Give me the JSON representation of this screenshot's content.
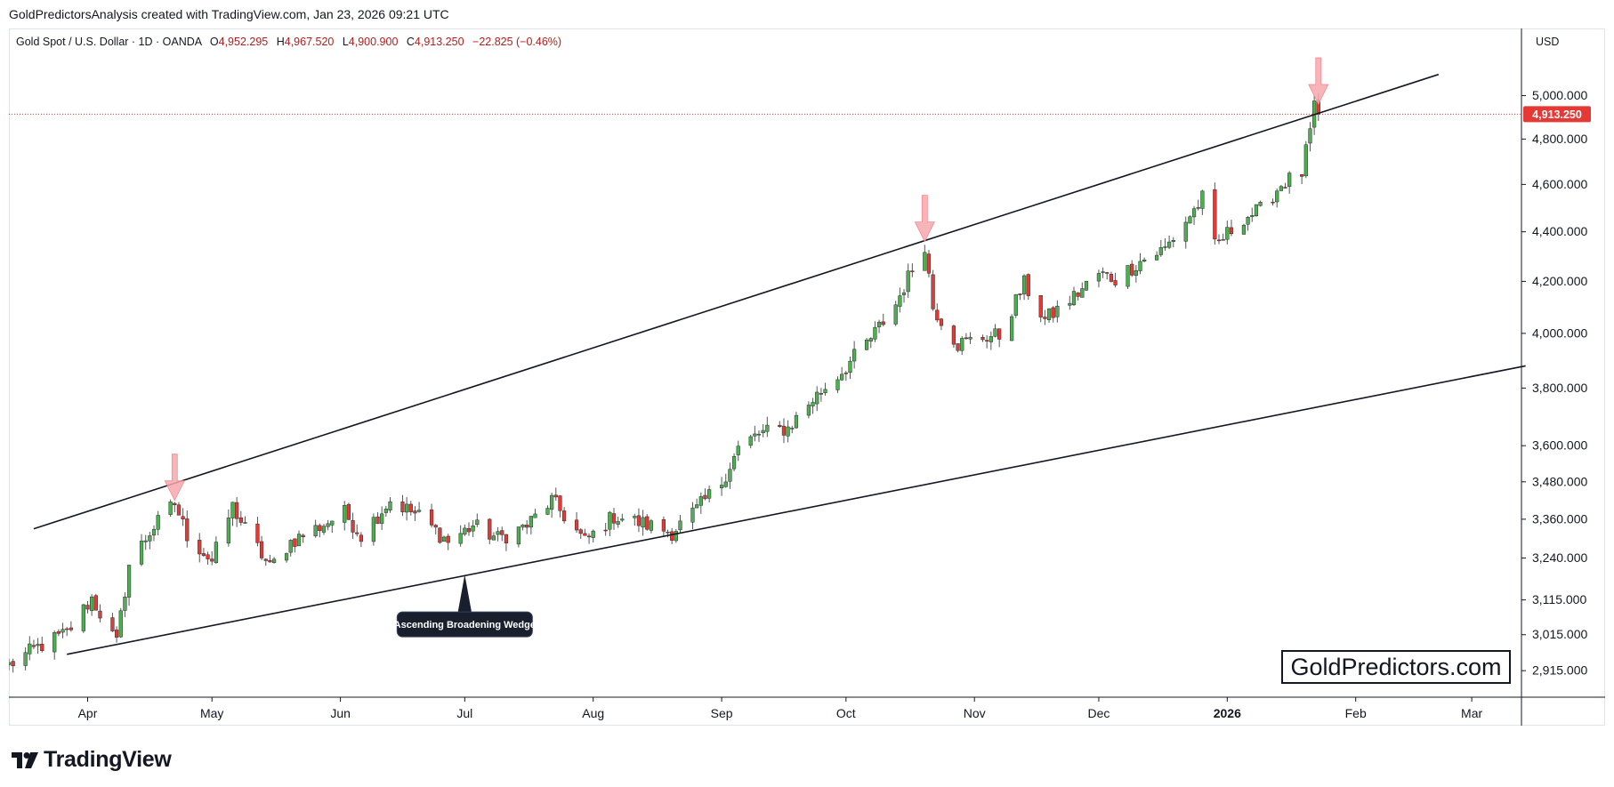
{
  "header": {
    "credit": "GoldPredictorsAnalysis created with TradingView.com, Jan 23, 2026 09:21 UTC"
  },
  "legend": {
    "symbol": "Gold Spot / U.S. Dollar · 1D · OANDA",
    "o_label": "O",
    "o_value": "4,952.295",
    "h_label": "H",
    "h_value": "4,967.520",
    "l_label": "L",
    "l_value": "4,900.900",
    "c_label": "C",
    "c_value": "4,913.250",
    "change": "−22.825 (−0.46%)"
  },
  "currency": "USD",
  "last_price_label": "4,913.250",
  "watermark": "GoldPredictors.com",
  "brand": "TradingView",
  "annotation": {
    "label": "Ascending Broadening Wedge"
  },
  "colors": {
    "up": "#4caf50",
    "down": "#e53935",
    "wick": "#555555",
    "price_line": "#e53935",
    "arrow": "#f7a8ad"
  },
  "chart_data": {
    "type": "candlestick",
    "scale": "log",
    "ylim": [
      2860,
      5150
    ],
    "y_ticks": [
      {
        "value": 2915,
        "label": "2,915.000"
      },
      {
        "value": 3015,
        "label": "3,015.000"
      },
      {
        "value": 3115,
        "label": "3,115.000"
      },
      {
        "value": 3240,
        "label": "3,240.000"
      },
      {
        "value": 3360,
        "label": "3,360.000"
      },
      {
        "value": 3480,
        "label": "3,480.000"
      },
      {
        "value": 3600,
        "label": "3,600.000"
      },
      {
        "value": 3800,
        "label": "3,800.000"
      },
      {
        "value": 4000,
        "label": "4,000.000"
      },
      {
        "value": 4200,
        "label": "4,200.000"
      },
      {
        "value": 4400,
        "label": "4,400.000"
      },
      {
        "value": 4600,
        "label": "4,600.000"
      },
      {
        "value": 4800,
        "label": "4,800.000"
      },
      {
        "value": 5000,
        "label": "5,000.000"
      }
    ],
    "x_start": "2025-03-13",
    "x_end": "2026-03-13",
    "x_ticks": [
      {
        "date": "2025-04-01",
        "label": "Apr",
        "bold": false
      },
      {
        "date": "2025-05-01",
        "label": "May",
        "bold": false
      },
      {
        "date": "2025-06-01",
        "label": "Jun",
        "bold": false
      },
      {
        "date": "2025-07-01",
        "label": "Jul",
        "bold": false
      },
      {
        "date": "2025-08-01",
        "label": "Aug",
        "bold": false
      },
      {
        "date": "2025-09-01",
        "label": "Sep",
        "bold": false
      },
      {
        "date": "2025-10-01",
        "label": "Oct",
        "bold": false
      },
      {
        "date": "2025-11-01",
        "label": "Nov",
        "bold": false
      },
      {
        "date": "2025-12-01",
        "label": "Dec",
        "bold": false
      },
      {
        "date": "2026-01-01",
        "label": "2026",
        "bold": true
      },
      {
        "date": "2026-02-01",
        "label": "Feb",
        "bold": false
      },
      {
        "date": "2026-03-01",
        "label": "Mar",
        "bold": false
      }
    ],
    "last_price": 4913.25,
    "anchors": [
      [
        "2025-03-13",
        2930
      ],
      [
        "2025-03-20",
        2980
      ],
      [
        "2025-03-27",
        3020
      ],
      [
        "2025-04-02",
        3120
      ],
      [
        "2025-04-08",
        2990
      ],
      [
        "2025-04-11",
        3220
      ],
      [
        "2025-04-16",
        3320
      ],
      [
        "2025-04-22",
        3410
      ],
      [
        "2025-04-25",
        3310
      ],
      [
        "2025-05-01",
        3230
      ],
      [
        "2025-05-06",
        3400
      ],
      [
        "2025-05-09",
        3330
      ],
      [
        "2025-05-15",
        3210
      ],
      [
        "2025-05-20",
        3290
      ],
      [
        "2025-05-26",
        3330
      ],
      [
        "2025-06-02",
        3380
      ],
      [
        "2025-06-06",
        3310
      ],
      [
        "2025-06-13",
        3420
      ],
      [
        "2025-06-20",
        3370
      ],
      [
        "2025-06-27",
        3290
      ],
      [
        "2025-07-03",
        3340
      ],
      [
        "2025-07-09",
        3300
      ],
      [
        "2025-07-16",
        3340
      ],
      [
        "2025-07-22",
        3420
      ],
      [
        "2025-07-30",
        3290
      ],
      [
        "2025-08-06",
        3370
      ],
      [
        "2025-08-12",
        3350
      ],
      [
        "2025-08-20",
        3320
      ],
      [
        "2025-08-26",
        3390
      ],
      [
        "2025-09-01",
        3480
      ],
      [
        "2025-09-05",
        3590
      ],
      [
        "2025-09-10",
        3640
      ],
      [
        "2025-09-17",
        3660
      ],
      [
        "2025-09-23",
        3760
      ],
      [
        "2025-09-30",
        3860
      ],
      [
        "2025-10-07",
        3980
      ],
      [
        "2025-10-13",
        4110
      ],
      [
        "2025-10-17",
        4250
      ],
      [
        "2025-10-20",
        4350
      ],
      [
        "2025-10-22",
        4100
      ],
      [
        "2025-10-28",
        3960
      ],
      [
        "2025-11-04",
        3990
      ],
      [
        "2025-11-07",
        3990
      ],
      [
        "2025-11-13",
        4190
      ],
      [
        "2025-11-18",
        4050
      ],
      [
        "2025-11-25",
        4140
      ],
      [
        "2025-12-01",
        4230
      ],
      [
        "2025-12-05",
        4210
      ],
      [
        "2025-12-11",
        4280
      ],
      [
        "2025-12-17",
        4330
      ],
      [
        "2025-12-24",
        4490
      ],
      [
        "2025-12-26",
        4540
      ],
      [
        "2025-12-29",
        4340
      ],
      [
        "2026-01-05",
        4460
      ],
      [
        "2026-01-09",
        4490
      ],
      [
        "2026-01-14",
        4600
      ],
      [
        "2026-01-19",
        4650
      ],
      [
        "2026-01-21",
        4830
      ],
      [
        "2026-01-22",
        4936
      ],
      [
        "2026-01-23",
        4913.25
      ]
    ],
    "trendlines": [
      {
        "name": "Upper",
        "start": [
          "2025-03-19",
          3330
        ],
        "end": [
          "2026-02-21",
          5100
        ]
      },
      {
        "name": "Lower",
        "start": [
          "2025-03-27",
          2960
        ],
        "end": [
          "2026-03-14",
          3880
        ]
      }
    ],
    "arrows": [
      {
        "date": "2025-04-22",
        "value": 3420
      },
      {
        "date": "2025-10-20",
        "value": 4360
      },
      {
        "date": "2026-01-23",
        "value": 4960
      }
    ],
    "annotation_point": {
      "date": "2025-07-01",
      "value": 3190
    }
  }
}
